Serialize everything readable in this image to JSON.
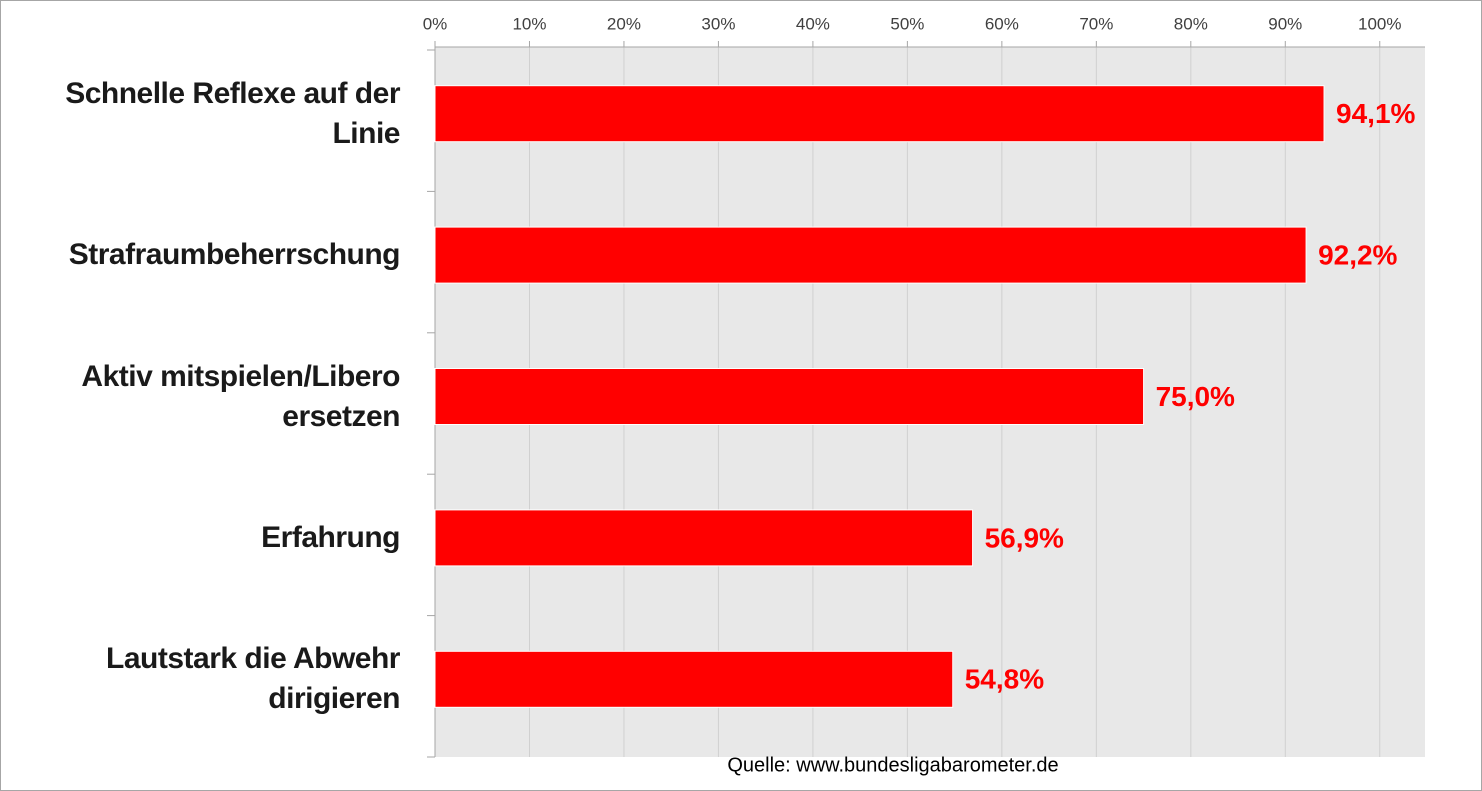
{
  "chart_data": {
    "type": "bar",
    "orientation": "horizontal",
    "categories": [
      "Schnelle Reflexe auf der Linie",
      "Strafraumbeherrschung",
      "Aktiv mitspielen/Libero ersetzen",
      "Erfahrung",
      "Lautstark die Abwehr dirigieren"
    ],
    "values": [
      94.1,
      92.2,
      75.0,
      56.9,
      54.8
    ],
    "value_labels": [
      "94,1%",
      "92,2%",
      "75,0%",
      "56,9%",
      "54,8%"
    ],
    "color": "#ff0000",
    "xlim": [
      0,
      105
    ],
    "xticks": [
      {
        "value": 0,
        "label": "0%"
      },
      {
        "value": 10,
        "label": "10%"
      },
      {
        "value": 20,
        "label": "20%"
      },
      {
        "value": 30,
        "label": "30%"
      },
      {
        "value": 40,
        "label": "40%"
      },
      {
        "value": 50,
        "label": "50%"
      },
      {
        "value": 60,
        "label": "60%"
      },
      {
        "value": 70,
        "label": "70%"
      },
      {
        "value": 80,
        "label": "80%"
      },
      {
        "value": 90,
        "label": "90%"
      },
      {
        "value": 100,
        "label": "100%"
      }
    ],
    "grid": true,
    "source": "Quelle: www.bundesligabarometer.de"
  }
}
